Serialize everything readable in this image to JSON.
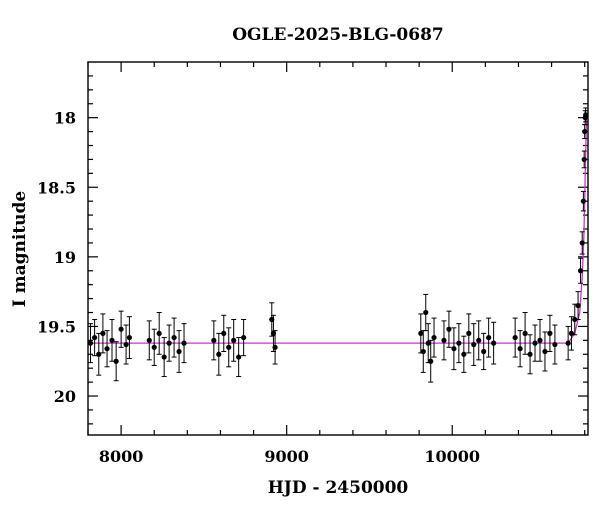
{
  "chart_data": {
    "type": "scatter",
    "title": "OGLE-2025-BLG-0687",
    "xlabel": "HJD - 2450000",
    "ylabel": "I magnitude",
    "xlim": [
      7800,
      10820
    ],
    "ylim": [
      20.28,
      17.6
    ],
    "y_inverted": true,
    "x_ticks": [
      "8000",
      "9000",
      "10000"
    ],
    "y_ticks": [
      "18",
      "18.5",
      "19",
      "19.5",
      "20"
    ],
    "grid": false,
    "colors": {
      "points": "#000000",
      "model": "#cc33cc"
    },
    "series": [
      {
        "type": "errorbar-scatter",
        "x": [
          7815,
          7840,
          7865,
          7890,
          7915,
          7945,
          7970,
          8000,
          8030,
          8050,
          8170,
          8200,
          8230,
          8260,
          8290,
          8320,
          8350,
          8380,
          8560,
          8590,
          8620,
          8650,
          8680,
          8710,
          8740,
          8910,
          8920,
          8930,
          9810,
          9825,
          9840,
          9855,
          9870,
          9890,
          9950,
          9980,
          10010,
          10040,
          10070,
          10100,
          10130,
          10160,
          10190,
          10220,
          10250,
          10380,
          10410,
          10440,
          10470,
          10500,
          10530,
          10560,
          10590,
          10620,
          10700,
          10720,
          10740,
          10760,
          10775,
          10785,
          10792,
          10797,
          10800,
          10803,
          10806
        ],
        "y": [
          19.62,
          19.58,
          19.7,
          19.55,
          19.66,
          19.6,
          19.75,
          19.52,
          19.63,
          19.58,
          19.6,
          19.65,
          19.55,
          19.72,
          19.62,
          19.58,
          19.68,
          19.62,
          19.6,
          19.7,
          19.55,
          19.65,
          19.6,
          19.72,
          19.58,
          19.45,
          19.55,
          19.65,
          19.55,
          19.68,
          19.4,
          19.62,
          19.75,
          19.58,
          19.6,
          19.52,
          19.66,
          19.62,
          19.7,
          19.55,
          19.63,
          19.6,
          19.68,
          19.58,
          19.62,
          19.58,
          19.66,
          19.55,
          19.7,
          19.62,
          19.6,
          19.68,
          19.55,
          19.63,
          19.62,
          19.55,
          19.45,
          19.35,
          19.1,
          18.9,
          18.6,
          18.3,
          18.1,
          18.0,
          17.98
        ],
        "yerr": [
          0.14,
          0.13,
          0.15,
          0.14,
          0.13,
          0.15,
          0.14,
          0.13,
          0.14,
          0.15,
          0.14,
          0.13,
          0.15,
          0.14,
          0.13,
          0.14,
          0.15,
          0.14,
          0.14,
          0.15,
          0.13,
          0.14,
          0.15,
          0.14,
          0.13,
          0.12,
          0.13,
          0.12,
          0.14,
          0.15,
          0.13,
          0.14,
          0.15,
          0.14,
          0.14,
          0.13,
          0.15,
          0.14,
          0.13,
          0.14,
          0.15,
          0.14,
          0.13,
          0.14,
          0.15,
          0.14,
          0.13,
          0.15,
          0.14,
          0.13,
          0.15,
          0.14,
          0.13,
          0.14,
          0.12,
          0.12,
          0.11,
          0.1,
          0.09,
          0.08,
          0.07,
          0.06,
          0.05,
          0.05,
          0.05
        ]
      },
      {
        "type": "line",
        "x": [
          7800,
          10700,
          10740,
          10770,
          10785,
          10795,
          10800,
          10804,
          10807,
          10810,
          10812
        ],
        "y": [
          19.62,
          19.62,
          19.55,
          19.4,
          19.15,
          18.85,
          18.6,
          18.35,
          18.2,
          18.05,
          17.99
        ]
      }
    ]
  }
}
